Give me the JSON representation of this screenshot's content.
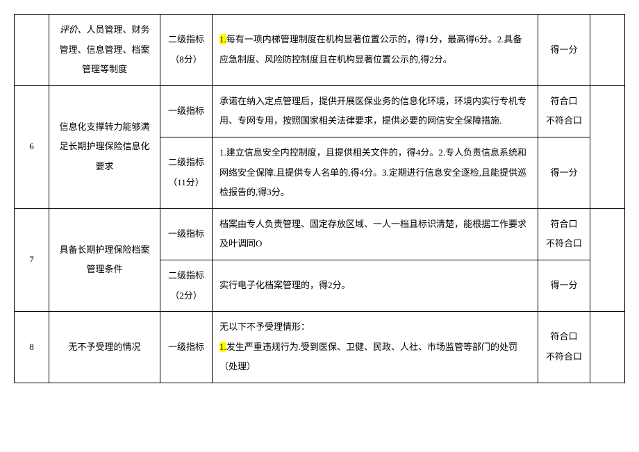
{
  "rows": {
    "r5": {
      "desc_prefix_italic": "评价、",
      "desc_rest": "人员管理、财务管理、信息管理、档案管理等制度",
      "level": "二级指标（8分）",
      "content_hl": "1.",
      "content_rest": "每有一项内梯管理制度在机构显著位置公示的，得1分，最高得6分。2.具备应急制度、风险防控制度且在机构显著位置公示的,得2分。",
      "score": "得一分"
    },
    "r6": {
      "num": "6",
      "desc": "信息化支撑转力能够满足长期护理保险信息化要求",
      "level1": "一级指标",
      "content1": "承诺在纳入定点管理后，提供开展医保业务的信息化环境，环境内实行专机专用、专网专用，按照国家相关法律要求，提供必要的网信安全保障措施.",
      "score1a": "符合口",
      "score1b": "不符合口",
      "level2": "二级指标（11分）",
      "content2": "1.建立信息安全内控制度，且提供相关文件的，得4分。2.专人负责信息系统和网络安全保障.且提供专人名单的,得4分。3.定期进行信息安全逐检,且能提供巡检报告的,得3分。",
      "score2": "得一分"
    },
    "r7": {
      "num": "7",
      "desc": "具备长期护理保险档案管理条件",
      "level1": "一级指标",
      "content1": "档案由专人负责管理、固定存放区域、一人一档且标识清楚，能根据工作要求及叶调同O",
      "score1a": "符合口",
      "score1b": "不符合口",
      "level2": "二级指标（2分）",
      "content2": "实行电子化档案管理的，得2分。",
      "score2": "得一分"
    },
    "r8": {
      "num": "8",
      "desc": "无不予受理的情况",
      "level1": "一级指标",
      "content1_pre": "无以下不予受理情形：",
      "content1_hl": "1.",
      "content1_post": "发生严重违规行为.受到医保、卫健、民政、人社、市场监管等部门的处罚（处理）",
      "score1a": "符合口",
      "score1b": "不符合口"
    }
  }
}
